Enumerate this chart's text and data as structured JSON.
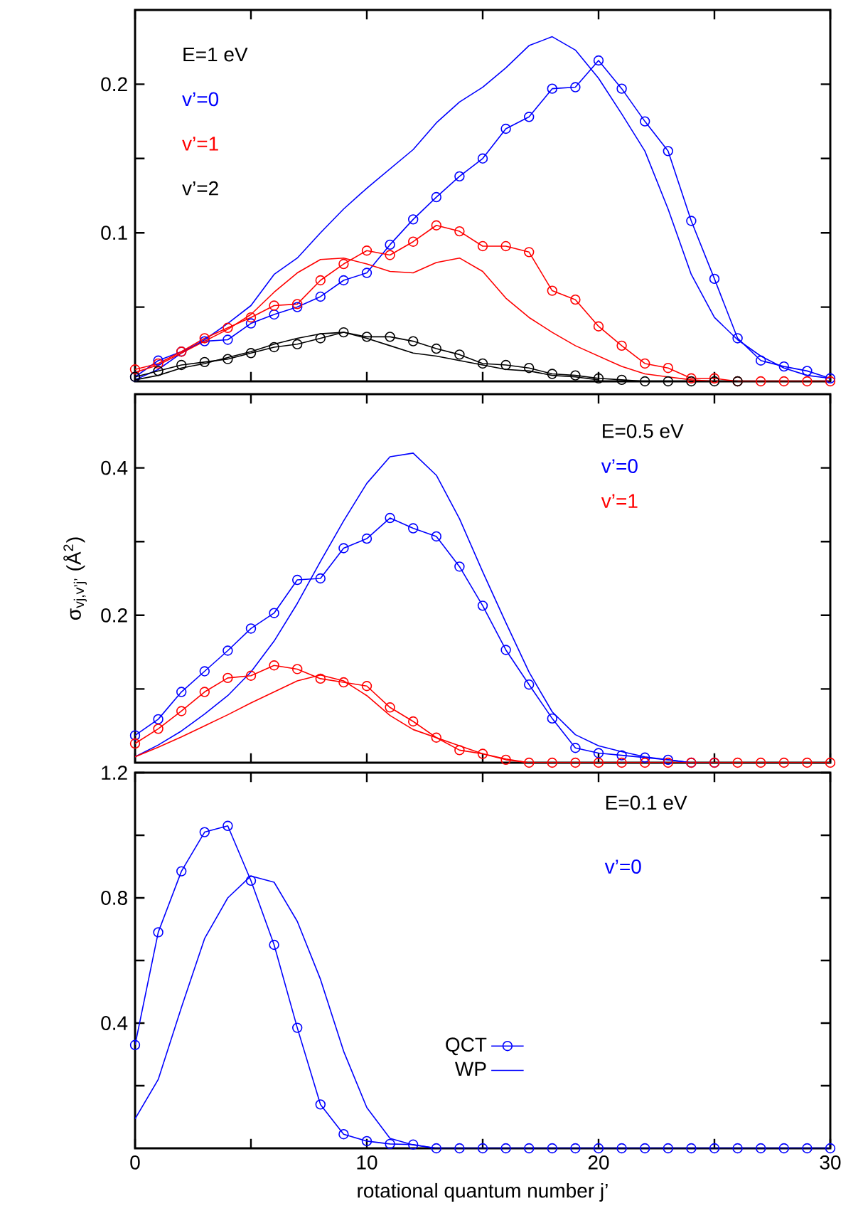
{
  "chart_data": [
    {
      "type": "line",
      "xlim": [
        0,
        30
      ],
      "ylim": [
        0,
        0.25
      ],
      "tick_labels": "y",
      "xticks": [
        0,
        {
          "value": 5,
          "label": null
        },
        10,
        {
          "value": 15,
          "label": null
        },
        20,
        {
          "value": 25,
          "label": null
        },
        30
      ],
      "yticks": [
        {
          "value": 0.05,
          "label": null
        },
        0.1,
        {
          "value": 0.15,
          "label": null
        },
        0.2
      ],
      "annotations": [
        "E=1 eV",
        "v’=0",
        "v’=1",
        "v’=2"
      ],
      "x": [
        0,
        1,
        2,
        3,
        4,
        5,
        6,
        7,
        8,
        9,
        10,
        11,
        12,
        13,
        14,
        15,
        16,
        17,
        18,
        19,
        20,
        21,
        22,
        23,
        24,
        25,
        26,
        27,
        28,
        29,
        30
      ],
      "series": [
        {
          "color": "#0000ff",
          "marker": "circle",
          "values": [
            0.003,
            0.014,
            0.02,
            0.027,
            0.028,
            0.039,
            0.045,
            0.05,
            0.057,
            0.068,
            0.073,
            0.092,
            0.109,
            0.124,
            0.138,
            0.15,
            0.17,
            0.178,
            0.197,
            0.198,
            0.216,
            0.197,
            0.175,
            0.155,
            0.108,
            0.069,
            0.029,
            0.014,
            0.01,
            0.007,
            0.002
          ]
        },
        {
          "color": "#0000ff",
          "marker": "none",
          "values": [
            0.001,
            0.008,
            0.019,
            0.028,
            0.039,
            0.051,
            0.072,
            0.083,
            0.1,
            0.116,
            0.13,
            0.143,
            0.156,
            0.174,
            0.188,
            0.198,
            0.211,
            0.226,
            0.232,
            0.223,
            0.204,
            0.18,
            0.155,
            0.116,
            0.072,
            0.043,
            0.028,
            0.017,
            0.009,
            0.004,
            0.002
          ]
        },
        {
          "color": "#ff0000",
          "marker": "circle",
          "values": [
            0.008,
            0.012,
            0.02,
            0.029,
            0.036,
            0.043,
            0.051,
            0.052,
            0.068,
            0.079,
            0.088,
            0.085,
            0.094,
            0.105,
            0.101,
            0.091,
            0.091,
            0.087,
            0.061,
            0.055,
            0.037,
            0.024,
            0.012,
            0.009,
            0.002,
            0.002,
            0,
            0,
            0,
            0,
            0
          ]
        },
        {
          "color": "#ff0000",
          "marker": "none",
          "values": [
            0.006,
            0.011,
            0.019,
            0.027,
            0.035,
            0.045,
            0.06,
            0.073,
            0.082,
            0.083,
            0.079,
            0.074,
            0.073,
            0.08,
            0.083,
            0.074,
            0.056,
            0.043,
            0.033,
            0.024,
            0.017,
            0.01,
            0.005,
            0.003,
            0.001,
            0,
            0,
            0,
            0,
            0,
            0
          ]
        },
        {
          "color": "#000000",
          "marker": "circle",
          "values": [
            0.003,
            0.007,
            0.011,
            0.013,
            0.015,
            0.019,
            0.023,
            0.025,
            0.029,
            0.033,
            0.03,
            0.03,
            0.027,
            0.022,
            0.018,
            0.012,
            0.011,
            0.009,
            0.005,
            0.004,
            0.002,
            0.001,
            0,
            0,
            0,
            0,
            0,
            null,
            null,
            null,
            null
          ]
        },
        {
          "color": "#000000",
          "marker": "none",
          "values": [
            0.001,
            0.004,
            0.009,
            0.012,
            0.016,
            0.02,
            0.025,
            0.029,
            0.032,
            0.033,
            0.029,
            0.024,
            0.019,
            0.017,
            0.014,
            0.011,
            0.008,
            0.007,
            0.004,
            0.003,
            0.001,
            null,
            null,
            null,
            null,
            null,
            null,
            null,
            null,
            null,
            null
          ]
        }
      ]
    },
    {
      "type": "line",
      "xlim": [
        0,
        30
      ],
      "ylim": [
        0,
        0.5
      ],
      "tick_labels": "y",
      "ylabel": "σ$_{vj,v’j’}$ (Å$^{2}$)",
      "xticks": [
        0,
        {
          "value": 5,
          "label": null
        },
        10,
        {
          "value": 15,
          "label": null
        },
        20,
        {
          "value": 25,
          "label": null
        },
        30
      ],
      "yticks": [
        {
          "value": 0.1,
          "label": null
        },
        0.2,
        {
          "value": 0.3,
          "label": null
        },
        0.4
      ],
      "annotations": [
        "E=0.5 eV",
        "v’=0",
        "v’=1"
      ],
      "x": [
        0,
        1,
        2,
        3,
        4,
        5,
        6,
        7,
        8,
        9,
        10,
        11,
        12,
        13,
        14,
        15,
        16,
        17,
        18,
        19,
        20,
        21,
        22,
        23,
        24,
        25,
        26,
        27,
        28,
        29,
        30
      ],
      "series": [
        {
          "color": "#0000ff",
          "marker": "circle",
          "values": [
            0.037,
            0.059,
            0.096,
            0.124,
            0.152,
            0.182,
            0.203,
            0.248,
            0.25,
            0.291,
            0.304,
            0.332,
            0.318,
            0.307,
            0.266,
            0.213,
            0.153,
            0.106,
            0.06,
            0.02,
            0.013,
            0.01,
            0.007,
            0.004,
            0,
            0,
            null,
            null,
            null,
            null,
            null
          ]
        },
        {
          "color": "#0000ff",
          "marker": "none",
          "values": [
            0.008,
            0.024,
            0.043,
            0.066,
            0.091,
            0.123,
            0.165,
            0.216,
            0.273,
            0.328,
            0.379,
            0.415,
            0.42,
            0.39,
            0.331,
            0.259,
            0.19,
            0.123,
            0.069,
            0.038,
            0.023,
            0.015,
            0.008,
            0.004,
            0,
            0,
            null,
            null,
            null,
            null,
            null
          ]
        },
        {
          "color": "#ff0000",
          "marker": "circle",
          "values": [
            0.026,
            0.046,
            0.07,
            0.096,
            0.115,
            0.118,
            0.132,
            0.127,
            0.114,
            0.109,
            0.104,
            0.075,
            0.056,
            0.034,
            0.017,
            0.012,
            0.004,
            0,
            0,
            0,
            0,
            0,
            0,
            0,
            0,
            0,
            0,
            0,
            0,
            0,
            0
          ]
        },
        {
          "color": "#ff0000",
          "marker": "none",
          "values": [
            0.008,
            0.021,
            0.035,
            0.05,
            0.065,
            0.081,
            0.096,
            0.111,
            0.119,
            0.111,
            0.091,
            0.064,
            0.045,
            0.034,
            0.023,
            0.012,
            0.005,
            0,
            0,
            0,
            0,
            0,
            0,
            0,
            0,
            0,
            0,
            0,
            0,
            0,
            0
          ]
        }
      ]
    },
    {
      "type": "line",
      "xlim": [
        0,
        30
      ],
      "ylim": [
        0,
        1.2
      ],
      "legend": "bottom",
      "xlabel": "rotational quantum number j’",
      "xticks": [
        0,
        {
          "value": 5,
          "label": null
        },
        10,
        {
          "value": 15,
          "label": null
        },
        20,
        {
          "value": 25,
          "label": null
        },
        30
      ],
      "yticks": [
        {
          "value": 0.2,
          "label": null
        },
        0.4,
        {
          "value": 0.6,
          "label": null
        },
        0.8,
        {
          "value": 1.0,
          "label": null
        },
        1.2
      ],
      "annotations": [
        "E=0.1 eV",
        "v’=0"
      ],
      "x": [
        0,
        1,
        2,
        3,
        4,
        5,
        6,
        7,
        8,
        9,
        10,
        11,
        12,
        13,
        14,
        15,
        16,
        17,
        18,
        19,
        20,
        21,
        22,
        23,
        24,
        25,
        26,
        27,
        28,
        29,
        30
      ],
      "series": [
        {
          "name": "QCT",
          "color": "#0000ff",
          "marker": "circle",
          "values": [
            0.33,
            0.69,
            0.885,
            1.01,
            1.03,
            0.855,
            0.65,
            0.385,
            0.14,
            0.045,
            0.023,
            0.014,
            0.012,
            0,
            0,
            0,
            0,
            0,
            0,
            0,
            0,
            0,
            0,
            0,
            0,
            0,
            0,
            0,
            0,
            0,
            0
          ]
        },
        {
          "name": "WP",
          "color": "#0000ff",
          "marker": "none",
          "values": [
            0.094,
            0.22,
            0.45,
            0.67,
            0.8,
            0.87,
            0.85,
            0.725,
            0.54,
            0.31,
            0.13,
            0.032,
            0.011,
            0,
            0,
            0,
            0,
            0,
            0,
            0,
            0,
            0,
            0,
            0,
            0,
            0,
            0,
            0,
            0,
            0,
            0
          ]
        }
      ]
    }
  ]
}
